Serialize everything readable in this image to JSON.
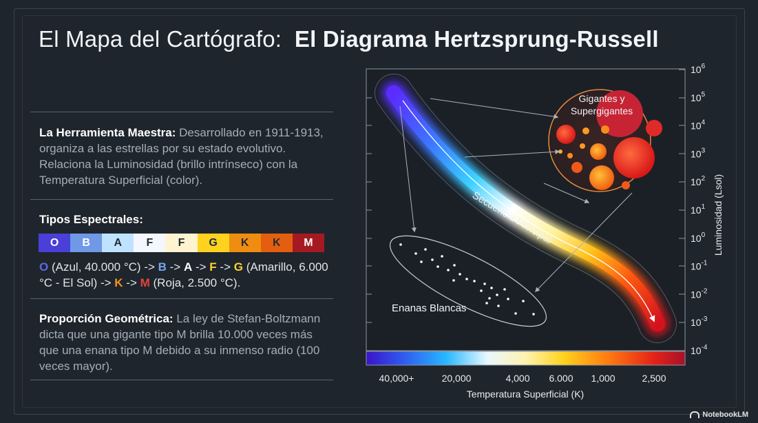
{
  "title": {
    "light": "El Mapa del Cartógrafo:",
    "bold": "El Diagrama Hertzsprung-Russell"
  },
  "section_tool": {
    "heading": "La Herramienta Maestra:",
    "body": "Desarrollado en 1911-1913, organiza a las estrellas por su estado evolutivo. Relaciona la Luminosidad (brillo intrínseco) con la Temperatura Superficial (color)."
  },
  "section_spectral": {
    "heading": "Tipos Espectrales:",
    "types": [
      {
        "label": "O",
        "bg": "#4a3fd8",
        "fg": "#ffffff"
      },
      {
        "label": "B",
        "bg": "#6f98e6",
        "fg": "#ffffff"
      },
      {
        "label": "A",
        "bg": "#bfe3ff",
        "fg": "#1e2a36"
      },
      {
        "label": "F",
        "bg": "#f5f7ff",
        "fg": "#1e2a36"
      },
      {
        "label": "F",
        "bg": "#fff4cf",
        "fg": "#1e2a36"
      },
      {
        "label": "G",
        "bg": "#ffd21f",
        "fg": "#1e2a36"
      },
      {
        "label": "K",
        "bg": "#f08c10",
        "fg": "#1e2a36"
      },
      {
        "label": "K",
        "bg": "#e35f0f",
        "fg": "#1e2a36"
      },
      {
        "label": "M",
        "bg": "#a51a22",
        "fg": "#ffffff"
      }
    ],
    "desc": [
      {
        "t": "O",
        "c": "#5a69e8",
        "b": true
      },
      {
        "t": " (Azul, 40.000 °C) -> ",
        "c": "#e1e5e8",
        "b": false
      },
      {
        "t": "B",
        "c": "#76a4f0",
        "b": true
      },
      {
        "t": " -> ",
        "c": "#e1e5e8",
        "b": false
      },
      {
        "t": "A",
        "c": "#ffffff",
        "b": true
      },
      {
        "t": " -> ",
        "c": "#e1e5e8",
        "b": false
      },
      {
        "t": "F",
        "c": "#ffd233",
        "b": true
      },
      {
        "t": " -> ",
        "c": "#e1e5e8",
        "b": false
      },
      {
        "t": "G",
        "c": "#ffd233",
        "b": true
      },
      {
        "t": " (Amarillo, 6.000 °C - El Sol) -> ",
        "c": "#e1e5e8",
        "b": false
      },
      {
        "t": "K",
        "c": "#f29224",
        "b": true
      },
      {
        "t": " -> ",
        "c": "#e1e5e8",
        "b": false
      },
      {
        "t": "M",
        "c": "#e8413a",
        "b": true
      },
      {
        "t": " (Roja, 2.500 °C).",
        "c": "#e1e5e8",
        "b": false
      }
    ]
  },
  "section_geometry": {
    "heading": "Proporción Geométrica:",
    "body": "La ley de Stefan-Boltzmann dicta que una gigante tipo M brilla 10.000 veces más que una enana tipo M debido a su inmenso radio (100 veces mayor)."
  },
  "diagram": {
    "labels": {
      "giants_line1": "Gigantes y",
      "giants_line2": "Supergigantes",
      "main_sequence": "Secuencia Principal",
      "white_dwarfs": "Enanas Blancas"
    },
    "y_axis": {
      "label": "Luminosidad (Lsol)",
      "ticks": [
        {
          "base": "10",
          "exp": "6"
        },
        {
          "base": "10",
          "exp": "5"
        },
        {
          "base": "10",
          "exp": "4"
        },
        {
          "base": "10",
          "exp": "3"
        },
        {
          "base": "10",
          "exp": "2"
        },
        {
          "base": "10",
          "exp": "1"
        },
        {
          "base": "10",
          "exp": "0"
        },
        {
          "base": "10",
          "exp": "-1"
        },
        {
          "base": "10",
          "exp": "-2"
        },
        {
          "base": "10",
          "exp": "-3"
        },
        {
          "base": "10",
          "exp": "-4"
        }
      ]
    },
    "x_axis": {
      "label": "Temperatura Superficial (K)",
      "ticks": [
        "40,000+",
        "20,000",
        "4,000",
        "6.000",
        "1,000",
        "2,500"
      ]
    }
  },
  "watermark": "NotebookLM"
}
